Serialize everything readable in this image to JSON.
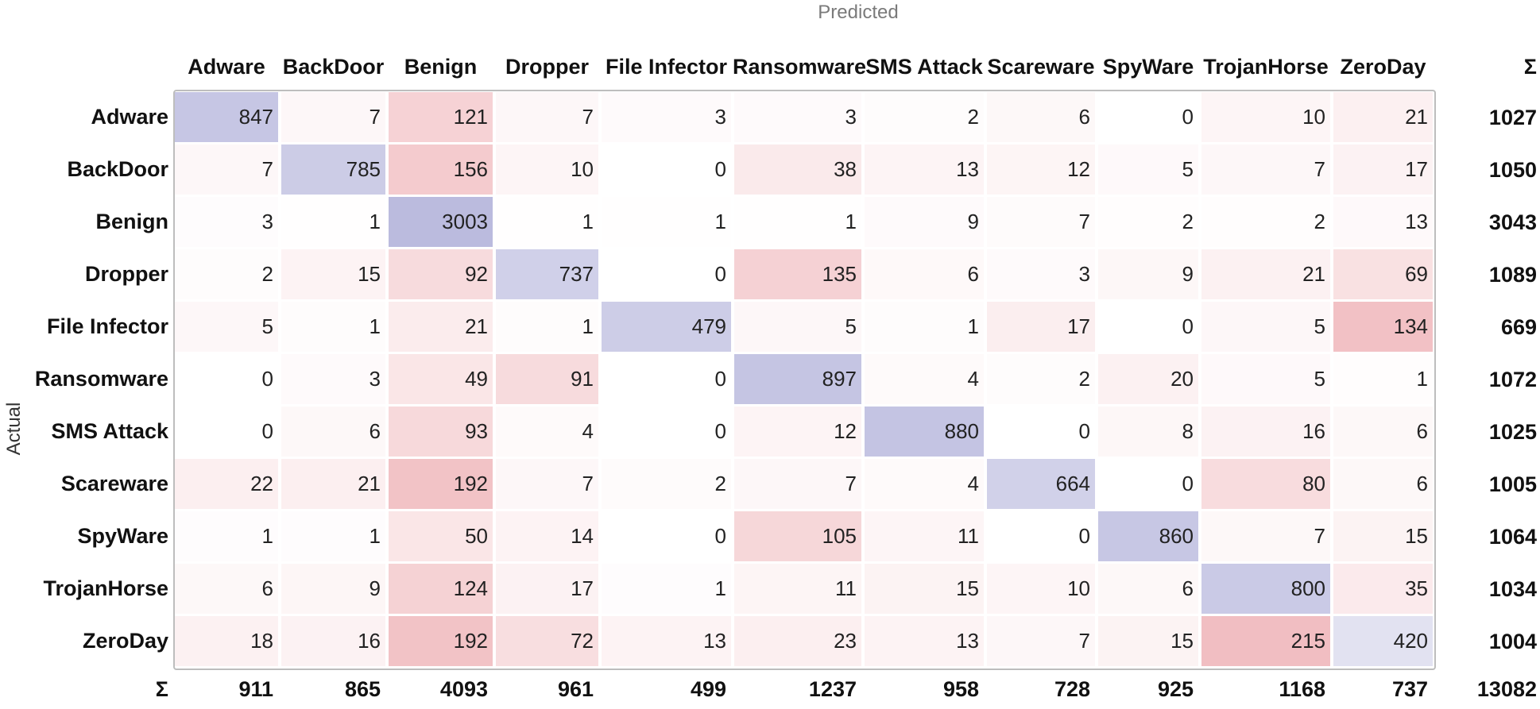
{
  "chart_data": {
    "type": "heatmap",
    "xlabel": "Predicted",
    "ylabel": "Actual",
    "sum_symbol": "Σ",
    "categories": [
      "Adware",
      "BackDoor",
      "Benign",
      "Dropper",
      "File Infector",
      "Ransomware",
      "SMS Attack",
      "Scareware",
      "SpyWare",
      "TrojanHorse",
      "ZeroDay"
    ],
    "matrix": [
      [
        847,
        7,
        121,
        7,
        3,
        3,
        2,
        6,
        0,
        10,
        21
      ],
      [
        7,
        785,
        156,
        10,
        0,
        38,
        13,
        12,
        5,
        7,
        17
      ],
      [
        3,
        1,
        3003,
        1,
        1,
        1,
        9,
        7,
        2,
        2,
        13
      ],
      [
        2,
        15,
        92,
        737,
        0,
        135,
        6,
        3,
        9,
        21,
        69
      ],
      [
        5,
        1,
        21,
        1,
        479,
        5,
        1,
        17,
        0,
        5,
        134
      ],
      [
        0,
        3,
        49,
        91,
        0,
        897,
        4,
        2,
        20,
        5,
        1
      ],
      [
        0,
        6,
        93,
        4,
        0,
        12,
        880,
        0,
        8,
        16,
        6
      ],
      [
        22,
        21,
        192,
        7,
        2,
        7,
        4,
        664,
        0,
        80,
        6
      ],
      [
        1,
        1,
        50,
        14,
        0,
        105,
        11,
        0,
        860,
        7,
        15
      ],
      [
        6,
        9,
        124,
        17,
        1,
        11,
        15,
        10,
        6,
        800,
        35
      ],
      [
        18,
        16,
        192,
        72,
        13,
        23,
        13,
        7,
        15,
        215,
        420
      ]
    ],
    "row_sums": [
      1027,
      1050,
      3043,
      1089,
      669,
      1072,
      1025,
      1005,
      1064,
      1034,
      1004
    ],
    "col_sums": [
      911,
      865,
      4093,
      961,
      499,
      1237,
      958,
      728,
      925,
      1168,
      737
    ],
    "total": 13082,
    "colors": {
      "correct": "#8c8cc8",
      "error": "#dc5a64"
    }
  }
}
